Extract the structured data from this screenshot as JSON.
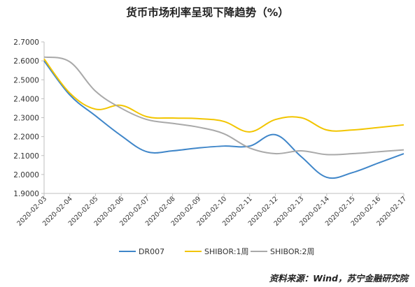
{
  "chart_data": {
    "type": "line",
    "title": "货币市场利率呈现下降趋势（%）",
    "x": [
      "2020-02-03",
      "2020-02-04",
      "2020-02-05",
      "2020-02-06",
      "2020-02-07",
      "2020-02-08",
      "2020-02-09",
      "2020-02-10",
      "2020-02-11",
      "2020-02-12",
      "2020-02-13",
      "2020-02-14",
      "2020-02-15",
      "2020-02-16",
      "2020-02-17"
    ],
    "ylim": [
      1.9,
      2.7
    ],
    "yticks": [
      "1.9000",
      "2.0000",
      "2.1000",
      "2.2000",
      "2.3000",
      "2.4000",
      "2.5000",
      "2.6000",
      "2.7000"
    ],
    "grid": false,
    "legend_position": "bottom",
    "series": [
      {
        "name": "DR007",
        "color": "#3f86c9",
        "values": [
          2.6,
          2.42,
          2.31,
          2.205,
          2.12,
          2.125,
          2.14,
          2.15,
          2.15,
          2.21,
          2.095,
          1.985,
          2.01,
          2.06,
          2.11
        ]
      },
      {
        "name": "SHIBOR:1周",
        "color": "#f2c500",
        "values": [
          2.61,
          2.43,
          2.345,
          2.365,
          2.305,
          2.298,
          2.295,
          2.28,
          2.225,
          2.29,
          2.3,
          2.235,
          2.235,
          2.248,
          2.262
        ]
      },
      {
        "name": "SHIBOR:2周",
        "color": "#a9a9a9",
        "values": [
          2.62,
          2.595,
          2.44,
          2.35,
          2.29,
          2.27,
          2.25,
          2.215,
          2.14,
          2.11,
          2.125,
          2.105,
          2.11,
          2.12,
          2.13
        ]
      }
    ]
  },
  "source": "资料来源：Wind，苏宁金融研究院"
}
